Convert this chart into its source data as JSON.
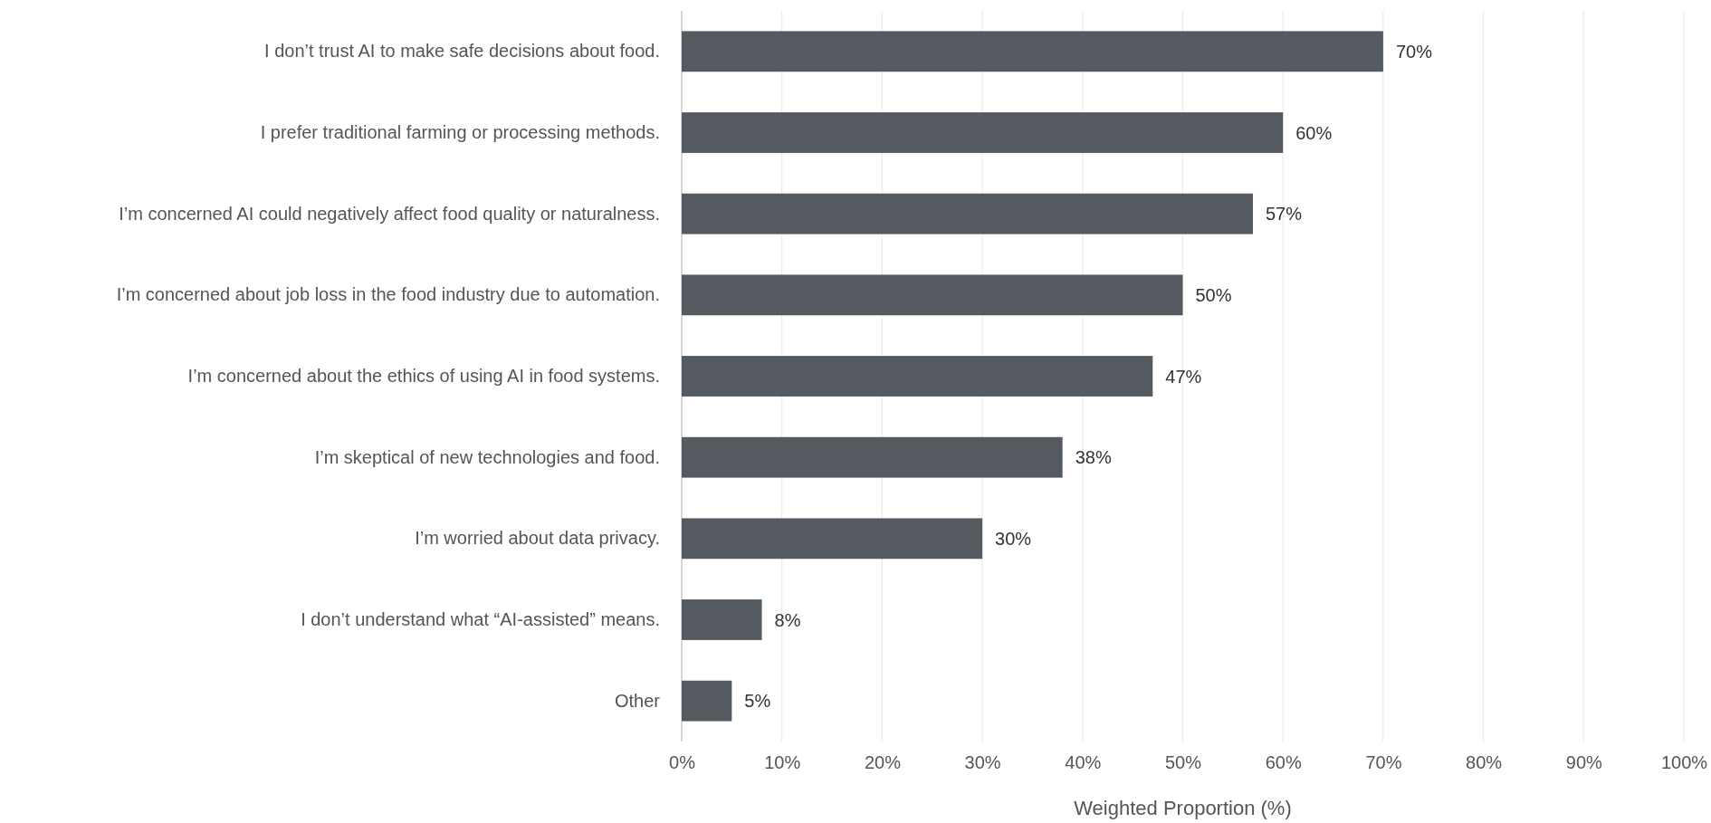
{
  "chart_data": {
    "type": "bar",
    "orientation": "horizontal",
    "xlabel": "Weighted Proportion (%)",
    "categories": [
      "I don’t trust AI to make safe decisions about food.",
      "I prefer traditional farming or processing methods.",
      "I’m concerned AI could negatively affect food quality or naturalness.",
      "I’m concerned about job loss in the food industry due to automation.",
      "I’m concerned about the ethics of using AI in food systems.",
      "I’m skeptical of new technologies and food.",
      "I’m worried about data privacy.",
      "I don’t understand what “AI-assisted” means.",
      "Other"
    ],
    "values": [
      70,
      60,
      57,
      50,
      47,
      38,
      30,
      8,
      5
    ],
    "value_labels": [
      "70%",
      "60%",
      "57%",
      "50%",
      "47%",
      "38%",
      "30%",
      "8%",
      "5%"
    ],
    "color": "#555a61",
    "xlim": [
      0,
      100
    ],
    "xticks": [
      {
        "value": 0,
        "label": "0%"
      },
      {
        "value": 10,
        "label": "10%"
      },
      {
        "value": 20,
        "label": "20%"
      },
      {
        "value": 30,
        "label": "30%"
      },
      {
        "value": 40,
        "label": "40%"
      },
      {
        "value": 50,
        "label": "50%"
      },
      {
        "value": 60,
        "label": "60%"
      },
      {
        "value": 70,
        "label": "70%"
      },
      {
        "value": 80,
        "label": "80%"
      },
      {
        "value": 90,
        "label": "90%"
      },
      {
        "value": 100,
        "label": "100%"
      }
    ],
    "grid": "x"
  }
}
